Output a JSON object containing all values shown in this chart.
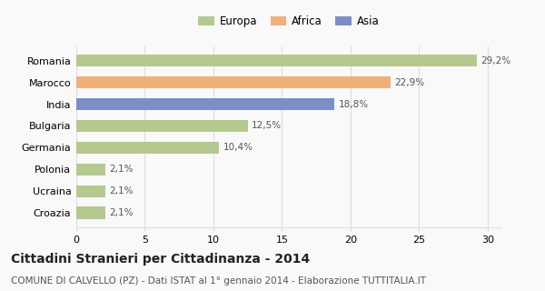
{
  "categories": [
    "Romania",
    "Marocco",
    "India",
    "Bulgaria",
    "Germania",
    "Polonia",
    "Ucraina",
    "Croazia"
  ],
  "values": [
    29.2,
    22.9,
    18.8,
    12.5,
    10.4,
    2.1,
    2.1,
    2.1
  ],
  "labels": [
    "29,2%",
    "22,9%",
    "18,8%",
    "12,5%",
    "10,4%",
    "2,1%",
    "2,1%",
    "2,1%"
  ],
  "colors": [
    "#b5c98e",
    "#f0b07a",
    "#7b8ec8",
    "#b5c98e",
    "#b5c98e",
    "#b5c98e",
    "#b5c98e",
    "#b5c98e"
  ],
  "legend_labels": [
    "Europa",
    "Africa",
    "Asia"
  ],
  "legend_colors": [
    "#b5c98e",
    "#f0b07a",
    "#7b8ec8"
  ],
  "title": "Cittadini Stranieri per Cittadinanza - 2014",
  "subtitle": "COMUNE DI CALVELLO (PZ) - Dati ISTAT al 1° gennaio 2014 - Elaborazione TUTTITALIA.IT",
  "xlim": [
    0,
    31
  ],
  "xticks": [
    0,
    5,
    10,
    15,
    20,
    25,
    30
  ],
  "background_color": "#f9f9f9",
  "grid_color": "#dddddd",
  "title_fontsize": 10,
  "subtitle_fontsize": 7.5,
  "label_fontsize": 7.5,
  "tick_fontsize": 8,
  "legend_fontsize": 8.5,
  "bar_height": 0.55
}
